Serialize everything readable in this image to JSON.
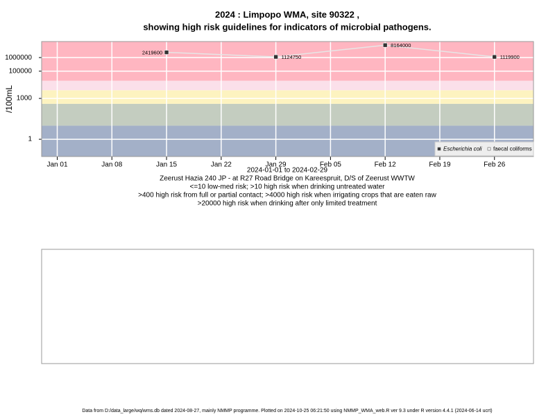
{
  "chart_data": {
    "type": "line",
    "title": "2024 : Limpopo WMA, site 90322 ,",
    "subtitle": "showing high risk guidelines for indicators of microbial pathogens.",
    "ylabel": "/100mL",
    "xlabel": "2024-01-01 to 2024-02-29",
    "notes": [
      "Zeerust Hazia 240 JP - at R27 Road Bridge on Kareespruit, D/S of Zeerust WWTW",
      "<=10 low-med risk; >10 high risk when drinking untreated water",
      ">400 high risk from full or partial contact; >4000 high risk when irrigating crops that are eaten raw",
      ">20000 high risk when drinking after only limited treatment"
    ],
    "footer": "Data from D:/data_large/wq/wms.db dated 2024-08-27, mainly NMMP programme. Plotted on 2024-10-25 06:21:50 using NMMP_WMA_web.R ver 9.3 under R version 4.4.1 (2024-06-14 ucrt)",
    "x": [
      "2024-01-15",
      "2024-01-29",
      "2024-02-12",
      "2024-02-26"
    ],
    "series": [
      {
        "name": "Escherichia coli",
        "color": "#333333",
        "values": [
          2419600,
          1124750,
          8164000,
          1119900
        ]
      },
      {
        "name": "faecal coliforms",
        "color": "#ffffff",
        "values": [
          null,
          null,
          null,
          null
        ]
      }
    ],
    "xlim": [
      "2023-12-30",
      "2024-03-02"
    ],
    "xticks": [
      {
        "value": "2024-01-01",
        "label": "Jan 01"
      },
      {
        "value": "2024-01-08",
        "label": "Jan 08"
      },
      {
        "value": "2024-01-15",
        "label": "Jan 15"
      },
      {
        "value": "2024-01-22",
        "label": "Jan 22"
      },
      {
        "value": "2024-01-29",
        "label": "Jan 29"
      },
      {
        "value": "2024-02-05",
        "label": "Feb 05"
      },
      {
        "value": "2024-02-12",
        "label": "Feb 12"
      },
      {
        "value": "2024-02-19",
        "label": "Feb 19"
      },
      {
        "value": "2024-02-26",
        "label": "Feb 26"
      }
    ],
    "ylim": [
      0.054,
      15000000
    ],
    "yticks": [
      1,
      1000,
      100000,
      1000000
    ],
    "log_y": true,
    "grid": true,
    "legend": "bottom-right",
    "band_edges": [
      10,
      400,
      4000,
      20000
    ],
    "band_colors": [
      "#a3b0c8",
      "#c4cdc0",
      "#fdf3c0",
      "#fbe0ea",
      "#ffb6c1"
    ]
  }
}
